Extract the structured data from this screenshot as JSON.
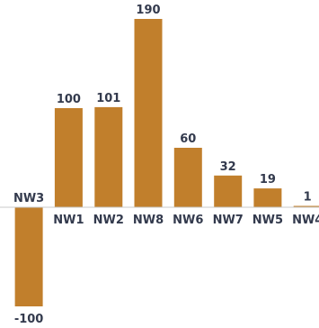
{
  "chart_data": {
    "type": "bar",
    "title": "",
    "xlabel": "",
    "ylabel": "",
    "categories": [
      "NW3",
      "NW1",
      "NW2",
      "NW8",
      "NW6",
      "NW7",
      "NW5",
      "NW4"
    ],
    "values": [
      -100,
      100,
      101,
      190,
      60,
      32,
      19,
      1
    ],
    "value_labels": [
      "-100",
      "100",
      "101",
      "190",
      "60",
      "32",
      "19",
      "1"
    ],
    "ylim": [
      -100,
      190
    ],
    "grid": false,
    "legend": "none",
    "bar_color": "#c17f2c",
    "baseline_color": "#c8c8c8",
    "label_color": "#333a4d"
  }
}
